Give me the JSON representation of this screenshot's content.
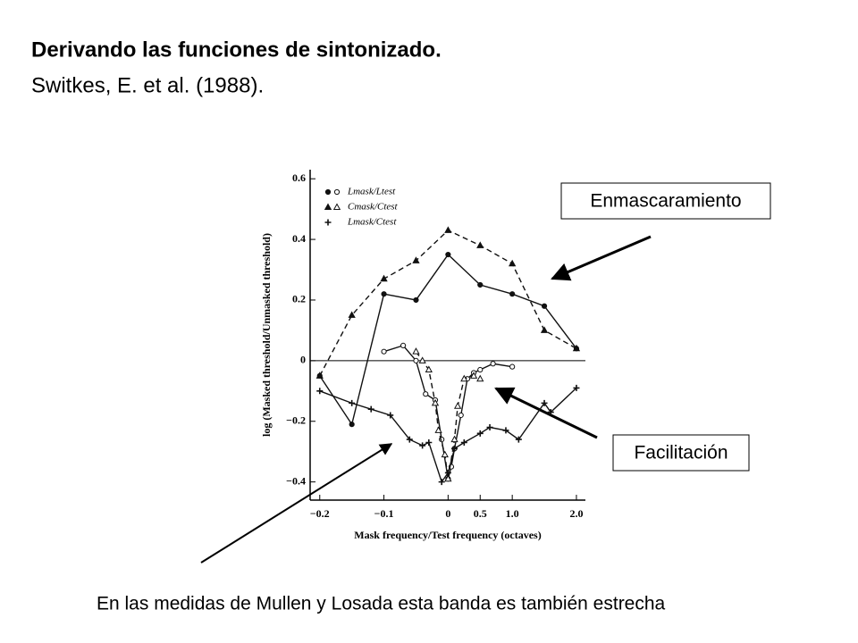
{
  "slide": {
    "title": "Derivando las funciones de sintonizado.",
    "subtitle": "Switkes, E. et al. (1988).",
    "box_masking": "Enmascaramiento",
    "box_facilitation": "Facilitación",
    "footnote": "En las medidas de Mullen y Losada esta banda es también estrecha"
  },
  "chart_data": {
    "type": "line",
    "x_label": "Mask frequency/Test frequency (octaves)",
    "y_label": "log (Masked threshold/Unmasked threshold)",
    "xlim": [
      -0.215,
      2.14
    ],
    "xticks": [
      {
        "value": -0.2,
        "label": "−0.2"
      },
      {
        "value": -0.1,
        "label": "−0.1"
      },
      0,
      0.5,
      {
        "value": 1,
        "label": "1.0"
      },
      {
        "value": 2,
        "label": "2.0"
      }
    ],
    "ylim": [
      -0.46,
      0.63
    ],
    "yticks": [
      0.6,
      0.4,
      0.2,
      0,
      {
        "value": -0.2,
        "label": "−0.2"
      },
      {
        "value": -0.4,
        "label": "−0.4"
      }
    ],
    "zero_line": true,
    "series": [
      {
        "name": "Lmask/Ltest",
        "color": "#111",
        "marker": "circle",
        "filled": true,
        "dashed": false,
        "x": [
          -0.2,
          -0.15,
          -0.1,
          -0.05,
          0,
          0.5,
          1,
          1.5,
          2
        ],
        "values": [
          -0.05,
          -0.21,
          0.22,
          0.2,
          0.35,
          0.25,
          0.22,
          0.18,
          0.04
        ]
      },
      {
        "name": "Cmask/Ctest",
        "color": "#111",
        "marker": "triangle",
        "filled": true,
        "dashed": true,
        "x": [
          -0.2,
          -0.15,
          -0.1,
          -0.05,
          0,
          0.5,
          1,
          1.5,
          2
        ],
        "values": [
          -0.05,
          0.15,
          0.27,
          0.33,
          0.43,
          0.38,
          0.32,
          0.1,
          0.04
        ]
      },
      {
        "name": "Lmask/Ltest",
        "color": "#111",
        "marker": "circle",
        "filled": false,
        "dashed": false,
        "x": [
          -0.1,
          -0.07,
          -0.05,
          -0.035,
          -0.02,
          -0.01,
          0,
          0.05,
          0.1,
          0.2,
          0.3,
          0.4,
          0.5,
          0.7,
          1
        ],
        "values": [
          0.03,
          0.05,
          0,
          -0.11,
          -0.13,
          -0.26,
          -0.39,
          -0.35,
          -0.29,
          -0.18,
          -0.06,
          -0.04,
          -0.03,
          -0.01,
          -0.02
        ]
      },
      {
        "name": "Cmask/Ctest",
        "color": "#111",
        "marker": "triangle",
        "filled": false,
        "dashed": true,
        "x": [
          -0.05,
          -0.04,
          -0.03,
          -0.02,
          -0.015,
          -0.005,
          0,
          0.1,
          0.15,
          0.25,
          0.4,
          0.5
        ],
        "values": [
          0.03,
          0,
          -0.03,
          -0.14,
          -0.23,
          -0.31,
          -0.39,
          -0.26,
          -0.15,
          -0.06,
          -0.05,
          -0.06
        ]
      },
      {
        "name": "Lmask/Ctest",
        "color": "#111",
        "marker": "plus",
        "filled": true,
        "dashed": false,
        "x": [
          -0.2,
          -0.15,
          -0.12,
          -0.09,
          -0.06,
          -0.04,
          -0.03,
          -0.01,
          0,
          0.1,
          0.25,
          0.5,
          0.65,
          0.9,
          1.1,
          1.5,
          1.6,
          2
        ],
        "values": [
          -0.1,
          -0.14,
          -0.16,
          -0.18,
          -0.26,
          -0.28,
          -0.27,
          -0.4,
          -0.37,
          -0.29,
          -0.27,
          -0.24,
          -0.22,
          -0.23,
          -0.26,
          -0.14,
          -0.17,
          -0.09
        ]
      }
    ]
  }
}
